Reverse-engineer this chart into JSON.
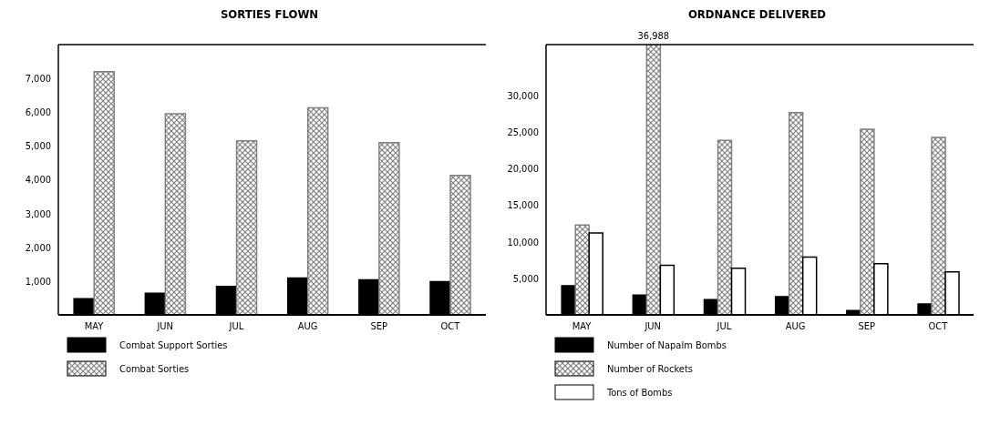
{
  "chart_data": [
    {
      "type": "bar",
      "title": "SORTIES FLOWN",
      "categories": [
        "MAY",
        "JUN",
        "JUL",
        "AUG",
        "SEP",
        "OCT"
      ],
      "series": [
        {
          "name": "Combat Support Sorties",
          "color": "#000000",
          "values": [
            480,
            640,
            840,
            1090,
            1040,
            980
          ]
        },
        {
          "name": "Combat Sorties",
          "color": "#808080",
          "values": [
            7200,
            5950,
            5150,
            6130,
            5100,
            4130
          ]
        }
      ],
      "ylim": [
        0,
        8000
      ],
      "yticks": [
        {
          "value": 1000,
          "label": "1,000"
        },
        {
          "value": 2000,
          "label": "2,000"
        },
        {
          "value": 3000,
          "label": "3,000"
        },
        {
          "value": 4000,
          "label": "4,000"
        },
        {
          "value": 5000,
          "label": "5,000"
        },
        {
          "value": 6000,
          "label": "6,000"
        },
        {
          "value": 7000,
          "label": "7,000"
        }
      ],
      "legend": "bottom",
      "grid": false
    },
    {
      "type": "bar",
      "title": "ORDNANCE DELIVERED",
      "categories": [
        "MAY",
        "JUN",
        "JUL",
        "AUG",
        "SEP",
        "OCT"
      ],
      "series": [
        {
          "name": "Number of Napalm Bombs",
          "color": "#000000",
          "values": [
            4000,
            2700,
            2100,
            2500,
            600,
            1500
          ]
        },
        {
          "name": "Number of Rockets",
          "color": "#808080",
          "values": [
            12300,
            36988,
            23900,
            27700,
            25400,
            24300
          ],
          "value_labels": [
            null,
            "36,988",
            null,
            null,
            null,
            null
          ]
        },
        {
          "name": "Tons of Bombs",
          "color": "#ffffff",
          "values": [
            11200,
            6800,
            6400,
            7900,
            7000,
            5900
          ]
        }
      ],
      "ylim": [
        0,
        37000
      ],
      "yticks": [
        {
          "value": 5000,
          "label": "5,000"
        },
        {
          "value": 10000,
          "label": "10,000"
        },
        {
          "value": 15000,
          "label": "15,000"
        },
        {
          "value": 20000,
          "label": "20,000"
        },
        {
          "value": 25000,
          "label": "25,000"
        },
        {
          "value": 30000,
          "label": "30,000"
        }
      ],
      "legend": "bottom",
      "grid": false
    }
  ]
}
